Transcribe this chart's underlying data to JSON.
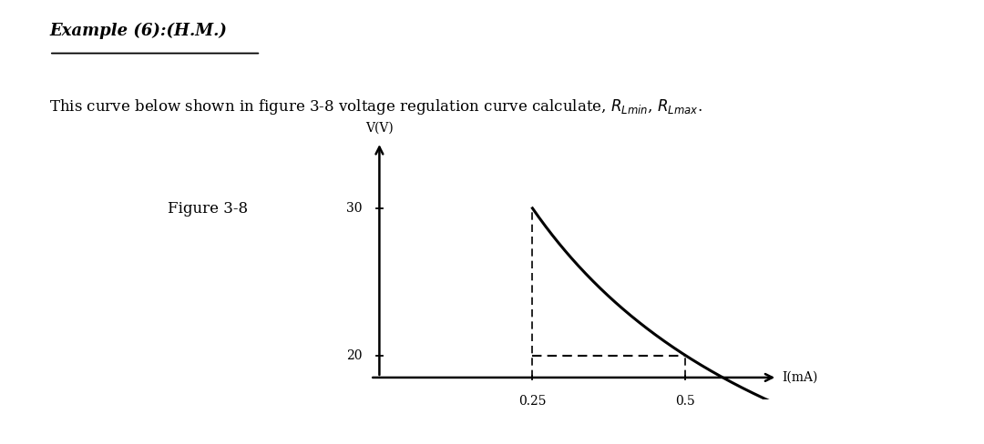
{
  "title_example": "Example (6):(H.M.)",
  "description_prefix": "This curve below shown in figure 3-8 voltage regulation curve calculate, ",
  "description_suffix": ".",
  "rl_min": "$R_{Lmin}$",
  "rl_max": "$R_{Lmax}$",
  "figure_label": "Figure 3-8",
  "ylabel": "V(V)",
  "xlabel": "I(mA)",
  "v_max": 30,
  "v_min": 20,
  "i_at_vmax": 0.25,
  "i_at_vmin": 0.5,
  "i_axis_max": 0.65,
  "y_axis_min": 18.5,
  "y_axis_max": 34.5,
  "background_color": "#ffffff",
  "curve_color": "#000000",
  "dashed_color": "#000000",
  "text_color": "#000000"
}
